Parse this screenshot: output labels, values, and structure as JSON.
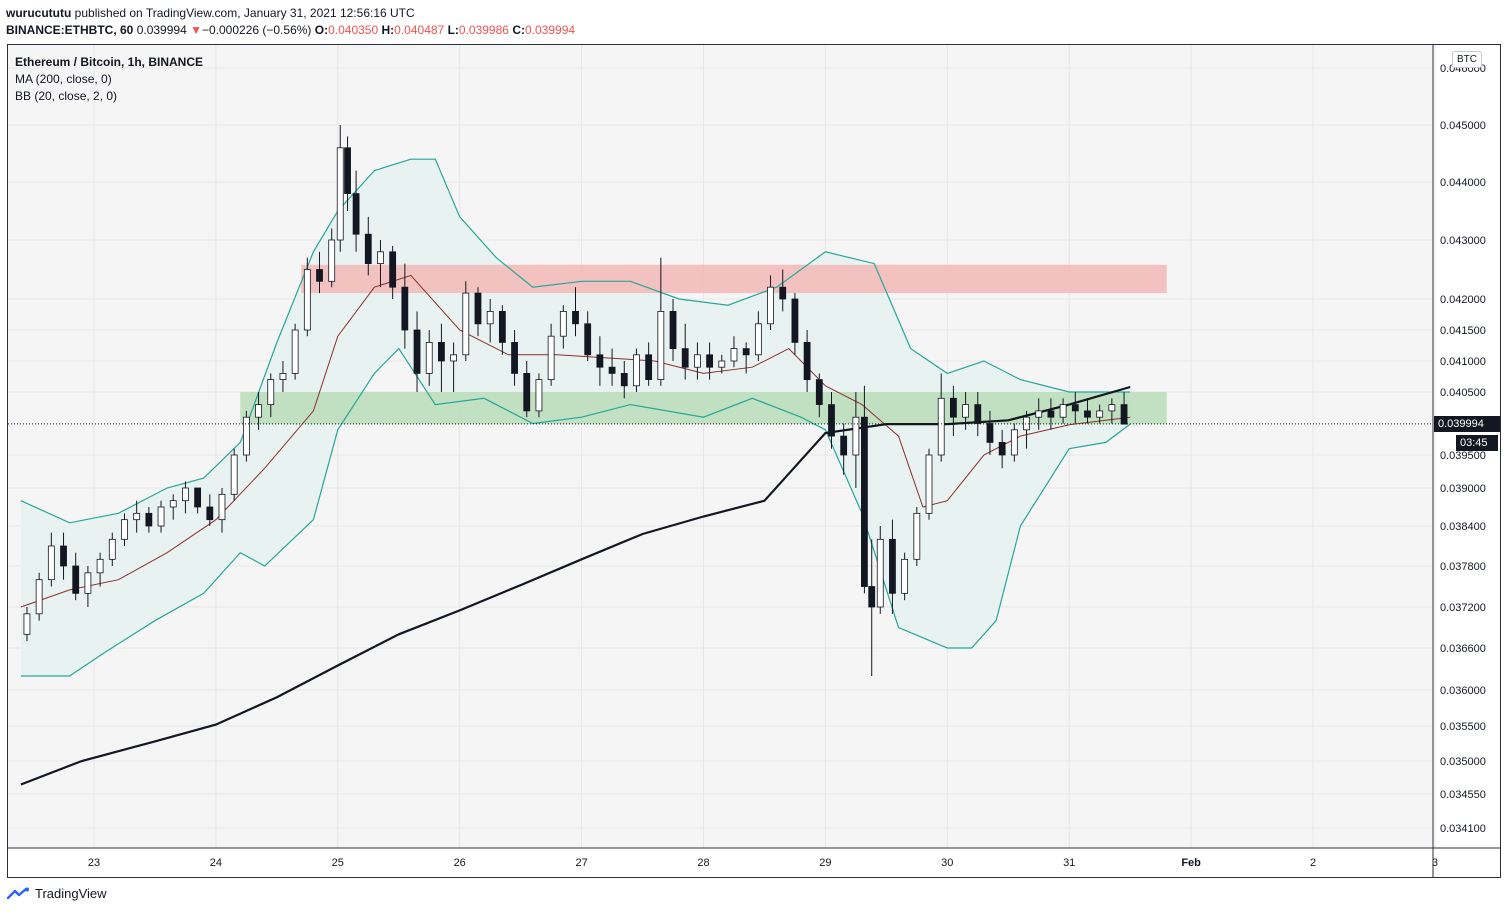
{
  "header": {
    "user": "wurucututu",
    "published_text": "published on TradingView.com, January 31, 2021 12:56:16 UTC",
    "symbol_line": "BINANCE:ETHBTC, 60",
    "last": "0.039994",
    "change_arrow": "▼",
    "change": "−0.000226 (−0.56%)",
    "o_label": "O:",
    "o_val": "0.040350",
    "h_label": "H:",
    "h_val": "0.040487",
    "l_label": "L:",
    "l_val": "0.039986",
    "c_label": "C:",
    "c_val": "0.039994"
  },
  "legend": {
    "title": "Ethereum / Bitcoin, 1h, BINANCE",
    "ma": "MA (200, close, 0)",
    "bb": "BB (20, close, 2, 0)"
  },
  "currency_button": "BTC",
  "price_tag": "0.039994",
  "countdown_tag": "03:45",
  "footer": {
    "brand": "TradingView"
  },
  "colors": {
    "up": "#ffffff",
    "down": "#131722",
    "bb_fill": "#e8f3f1",
    "bb_band": "#26a69a",
    "bb_basis": "#8d2f2a",
    "ma": "#131722",
    "resistance_zone": "#f2b9b6",
    "support_zone": "#b9dcb8",
    "price_tag_bg": "#131722"
  },
  "chart_data": {
    "type": "candlestick",
    "symbol": "ETHBTC",
    "timeframe": "1h",
    "x_ticks": [
      "23",
      "24",
      "25",
      "26",
      "27",
      "28",
      "29",
      "30",
      "31",
      "Feb",
      "2",
      "3"
    ],
    "y_ticks": [
      "0.034100",
      "0.034550",
      "0.035000",
      "0.035500",
      "0.036000",
      "0.036600",
      "0.037200",
      "0.037800",
      "0.038400",
      "0.039000",
      "0.039500",
      "0.040500",
      "0.041000",
      "0.041500",
      "0.042000",
      "0.043000",
      "0.044000",
      "0.045000",
      "0.046000"
    ],
    "ylim": [
      0.0338,
      0.0462
    ],
    "zones": [
      {
        "name": "resistance",
        "from": 0.0421,
        "to": 0.04258,
        "start_day": 24.7,
        "end_day": 31.8
      },
      {
        "name": "support",
        "from": 0.03999,
        "to": 0.0405,
        "start_day": 24.2,
        "end_day": 31.8
      }
    ],
    "ma200": [
      [
        22.4,
        0.03468
      ],
      [
        22.9,
        0.035
      ],
      [
        23.5,
        0.03528
      ],
      [
        24.0,
        0.03552
      ],
      [
        24.5,
        0.0359
      ],
      [
        25.0,
        0.03635
      ],
      [
        25.5,
        0.0368
      ],
      [
        26.0,
        0.03715
      ],
      [
        26.5,
        0.03752
      ],
      [
        27.0,
        0.0379
      ],
      [
        27.5,
        0.03828
      ],
      [
        28.0,
        0.03855
      ],
      [
        28.5,
        0.0388
      ],
      [
        29.0,
        0.03985
      ],
      [
        29.5,
        0.03999
      ],
      [
        30.0,
        0.03999
      ],
      [
        30.5,
        0.04005
      ],
      [
        31.0,
        0.0403
      ],
      [
        31.5,
        0.04058
      ]
    ],
    "bb_upper": [
      [
        22.4,
        0.0388
      ],
      [
        22.8,
        0.03845
      ],
      [
        23.2,
        0.0386
      ],
      [
        23.6,
        0.039
      ],
      [
        23.9,
        0.03915
      ],
      [
        24.2,
        0.0397
      ],
      [
        24.5,
        0.0413
      ],
      [
        24.8,
        0.0428
      ],
      [
        25.0,
        0.0435
      ],
      [
        25.3,
        0.0442
      ],
      [
        25.6,
        0.0444
      ],
      [
        25.8,
        0.0444
      ],
      [
        26.0,
        0.0434
      ],
      [
        26.3,
        0.0427
      ],
      [
        26.6,
        0.0422
      ],
      [
        27.0,
        0.0423
      ],
      [
        27.4,
        0.0423
      ],
      [
        27.8,
        0.042
      ],
      [
        28.2,
        0.0419
      ],
      [
        28.6,
        0.0422
      ],
      [
        29.0,
        0.0428
      ],
      [
        29.4,
        0.0426
      ],
      [
        29.7,
        0.0412
      ],
      [
        30.0,
        0.0408
      ],
      [
        30.3,
        0.041
      ],
      [
        30.6,
        0.0407
      ],
      [
        31.0,
        0.0405
      ],
      [
        31.5,
        0.0405
      ]
    ],
    "bb_basis": [
      [
        22.4,
        0.0372
      ],
      [
        22.8,
        0.03745
      ],
      [
        23.2,
        0.0376
      ],
      [
        23.6,
        0.038
      ],
      [
        24.0,
        0.0385
      ],
      [
        24.4,
        0.0393
      ],
      [
        24.8,
        0.0402
      ],
      [
        25.0,
        0.0414
      ],
      [
        25.3,
        0.0422
      ],
      [
        25.6,
        0.0424
      ],
      [
        26.0,
        0.0415
      ],
      [
        26.4,
        0.0411
      ],
      [
        26.8,
        0.0411
      ],
      [
        27.2,
        0.04105
      ],
      [
        27.6,
        0.041
      ],
      [
        28.0,
        0.0408
      ],
      [
        28.4,
        0.0409
      ],
      [
        28.7,
        0.0412
      ],
      [
        29.0,
        0.0406
      ],
      [
        29.3,
        0.0403
      ],
      [
        29.6,
        0.0398
      ],
      [
        29.8,
        0.0387
      ],
      [
        30.0,
        0.0388
      ],
      [
        30.3,
        0.0395
      ],
      [
        30.6,
        0.0398
      ],
      [
        31.0,
        0.03998
      ],
      [
        31.5,
        0.0401
      ]
    ],
    "bb_lower": [
      [
        22.4,
        0.0362
      ],
      [
        22.8,
        0.0362
      ],
      [
        23.1,
        0.03655
      ],
      [
        23.5,
        0.037
      ],
      [
        23.9,
        0.0374
      ],
      [
        24.2,
        0.038
      ],
      [
        24.4,
        0.0378
      ],
      [
        24.8,
        0.0385
      ],
      [
        25.0,
        0.0399
      ],
      [
        25.3,
        0.0408
      ],
      [
        25.5,
        0.0412
      ],
      [
        25.8,
        0.0403
      ],
      [
        26.2,
        0.0404
      ],
      [
        26.6,
        0.04
      ],
      [
        27.0,
        0.0401
      ],
      [
        27.4,
        0.0403
      ],
      [
        28.0,
        0.0401
      ],
      [
        28.4,
        0.0404
      ],
      [
        28.8,
        0.0401
      ],
      [
        29.0,
        0.0399
      ],
      [
        29.3,
        0.0386
      ],
      [
        29.6,
        0.0369
      ],
      [
        30.0,
        0.0366
      ],
      [
        30.2,
        0.0366
      ],
      [
        30.4,
        0.037
      ],
      [
        30.6,
        0.0384
      ],
      [
        31.0,
        0.0396
      ],
      [
        31.3,
        0.0397
      ],
      [
        31.5,
        0.03999
      ]
    ],
    "ohlc": [
      [
        22.45,
        0.0368,
        0.0372,
        0.0367,
        0.0371
      ],
      [
        22.55,
        0.0371,
        0.0377,
        0.037,
        0.0376
      ],
      [
        22.65,
        0.0376,
        0.0383,
        0.0375,
        0.0381
      ],
      [
        22.75,
        0.0381,
        0.0383,
        0.0376,
        0.0378
      ],
      [
        22.85,
        0.0378,
        0.038,
        0.0373,
        0.0374
      ],
      [
        22.95,
        0.0374,
        0.0378,
        0.0372,
        0.0377
      ],
      [
        23.05,
        0.0377,
        0.038,
        0.0375,
        0.0379
      ],
      [
        23.15,
        0.0379,
        0.0383,
        0.0378,
        0.0382
      ],
      [
        23.25,
        0.0382,
        0.0386,
        0.0381,
        0.0385
      ],
      [
        23.35,
        0.0385,
        0.0388,
        0.0383,
        0.0386
      ],
      [
        23.45,
        0.0386,
        0.0387,
        0.0383,
        0.0384
      ],
      [
        23.55,
        0.0384,
        0.0388,
        0.0383,
        0.0387
      ],
      [
        23.65,
        0.0387,
        0.0389,
        0.0385,
        0.0388
      ],
      [
        23.75,
        0.0388,
        0.0391,
        0.0386,
        0.039
      ],
      [
        23.85,
        0.039,
        0.039,
        0.0386,
        0.0387
      ],
      [
        23.95,
        0.0387,
        0.0389,
        0.0384,
        0.0385
      ],
      [
        24.05,
        0.0385,
        0.039,
        0.0383,
        0.0389
      ],
      [
        24.15,
        0.0389,
        0.0396,
        0.0388,
        0.0395
      ],
      [
        24.25,
        0.0395,
        0.0402,
        0.0394,
        0.0401
      ],
      [
        24.35,
        0.0401,
        0.0405,
        0.0399,
        0.0403
      ],
      [
        24.45,
        0.0403,
        0.0408,
        0.0401,
        0.0407
      ],
      [
        24.55,
        0.0407,
        0.041,
        0.0405,
        0.0408
      ],
      [
        24.65,
        0.0408,
        0.0416,
        0.0407,
        0.0415
      ],
      [
        24.75,
        0.0415,
        0.0427,
        0.0414,
        0.0425
      ],
      [
        24.85,
        0.0425,
        0.0428,
        0.0421,
        0.0423
      ],
      [
        24.95,
        0.0423,
        0.0432,
        0.0422,
        0.043
      ],
      [
        25.02,
        0.043,
        0.045,
        0.0428,
        0.0446
      ],
      [
        25.08,
        0.0446,
        0.0448,
        0.0435,
        0.0438
      ],
      [
        25.15,
        0.0438,
        0.0442,
        0.0428,
        0.0431
      ],
      [
        25.25,
        0.0431,
        0.0434,
        0.0424,
        0.0426
      ],
      [
        25.35,
        0.0426,
        0.043,
        0.0422,
        0.0428
      ],
      [
        25.45,
        0.0428,
        0.0429,
        0.042,
        0.0422
      ],
      [
        25.55,
        0.0422,
        0.0426,
        0.0412,
        0.0415
      ],
      [
        25.65,
        0.0415,
        0.0418,
        0.0405,
        0.0408
      ],
      [
        25.75,
        0.0408,
        0.0415,
        0.0406,
        0.0413
      ],
      [
        25.85,
        0.0413,
        0.0416,
        0.0405,
        0.041
      ],
      [
        25.95,
        0.041,
        0.0413,
        0.0405,
        0.0411
      ],
      [
        26.05,
        0.0411,
        0.0423,
        0.041,
        0.0421
      ],
      [
        26.15,
        0.0421,
        0.0422,
        0.0414,
        0.0416
      ],
      [
        26.25,
        0.0416,
        0.042,
        0.0413,
        0.0418
      ],
      [
        26.35,
        0.0418,
        0.0419,
        0.0411,
        0.0413
      ],
      [
        26.45,
        0.0413,
        0.0415,
        0.0406,
        0.0408
      ],
      [
        26.55,
        0.0408,
        0.041,
        0.0401,
        0.0402
      ],
      [
        26.65,
        0.0402,
        0.0408,
        0.0401,
        0.0407
      ],
      [
        26.75,
        0.0407,
        0.0416,
        0.0406,
        0.0414
      ],
      [
        26.85,
        0.0414,
        0.0419,
        0.0412,
        0.0418
      ],
      [
        26.95,
        0.0418,
        0.0422,
        0.0414,
        0.0416
      ],
      [
        27.05,
        0.0416,
        0.0418,
        0.041,
        0.0411
      ],
      [
        27.15,
        0.0411,
        0.0414,
        0.0406,
        0.0409
      ],
      [
        27.25,
        0.0409,
        0.0412,
        0.0406,
        0.0408
      ],
      [
        27.35,
        0.0408,
        0.041,
        0.0404,
        0.0406
      ],
      [
        27.45,
        0.0406,
        0.0412,
        0.0405,
        0.0411
      ],
      [
        27.55,
        0.0411,
        0.0413,
        0.0406,
        0.0407
      ],
      [
        27.65,
        0.0407,
        0.0427,
        0.0406,
        0.0418
      ],
      [
        27.75,
        0.0418,
        0.042,
        0.041,
        0.0412
      ],
      [
        27.85,
        0.0412,
        0.0416,
        0.0407,
        0.0409
      ],
      [
        27.95,
        0.0409,
        0.0413,
        0.0407,
        0.0411
      ],
      [
        28.05,
        0.0411,
        0.0413,
        0.0407,
        0.0409
      ],
      [
        28.15,
        0.0409,
        0.0411,
        0.0408,
        0.041
      ],
      [
        28.25,
        0.041,
        0.0414,
        0.0409,
        0.0412
      ],
      [
        28.35,
        0.0412,
        0.0413,
        0.0408,
        0.0411
      ],
      [
        28.45,
        0.0411,
        0.0418,
        0.041,
        0.0416
      ],
      [
        28.55,
        0.0416,
        0.0424,
        0.0415,
        0.0422
      ],
      [
        28.65,
        0.0422,
        0.0425,
        0.0418,
        0.042
      ],
      [
        28.75,
        0.042,
        0.0421,
        0.0411,
        0.0413
      ],
      [
        28.85,
        0.0413,
        0.0415,
        0.0405,
        0.0407
      ],
      [
        28.95,
        0.0407,
        0.0408,
        0.0401,
        0.0403
      ],
      [
        29.05,
        0.0403,
        0.0405,
        0.0396,
        0.0398
      ],
      [
        29.15,
        0.0398,
        0.04,
        0.0392,
        0.0395
      ],
      [
        29.25,
        0.0395,
        0.0405,
        0.039,
        0.0401
      ],
      [
        29.32,
        0.0401,
        0.0406,
        0.0374,
        0.0375
      ],
      [
        29.38,
        0.0375,
        0.0382,
        0.0362,
        0.0372
      ],
      [
        29.45,
        0.0372,
        0.0384,
        0.0371,
        0.0382
      ],
      [
        29.55,
        0.0382,
        0.0385,
        0.0371,
        0.0374
      ],
      [
        29.65,
        0.0374,
        0.038,
        0.0373,
        0.0379
      ],
      [
        29.75,
        0.0379,
        0.0387,
        0.0378,
        0.0386
      ],
      [
        29.85,
        0.0386,
        0.0396,
        0.0385,
        0.0395
      ],
      [
        29.95,
        0.0395,
        0.0408,
        0.0394,
        0.0404
      ],
      [
        30.05,
        0.0404,
        0.0406,
        0.0398,
        0.0401
      ],
      [
        30.15,
        0.0401,
        0.0405,
        0.0399,
        0.0403
      ],
      [
        30.25,
        0.0403,
        0.0405,
        0.0398,
        0.04
      ],
      [
        30.35,
        0.04,
        0.0402,
        0.0395,
        0.0397
      ],
      [
        30.45,
        0.0397,
        0.0399,
        0.0393,
        0.0395
      ],
      [
        30.55,
        0.0395,
        0.04,
        0.0394,
        0.0399
      ],
      [
        30.65,
        0.0399,
        0.0402,
        0.0396,
        0.0401
      ],
      [
        30.75,
        0.0401,
        0.0404,
        0.0399,
        0.0402
      ],
      [
        30.85,
        0.0402,
        0.0404,
        0.0399,
        0.0401
      ],
      [
        30.95,
        0.0401,
        0.0404,
        0.04,
        0.0403
      ],
      [
        31.05,
        0.0403,
        0.0405,
        0.04,
        0.0402
      ],
      [
        31.15,
        0.0402,
        0.0404,
        0.04,
        0.0401
      ],
      [
        31.25,
        0.0401,
        0.0403,
        0.04,
        0.0402
      ],
      [
        31.35,
        0.0402,
        0.0404,
        0.04,
        0.0403
      ],
      [
        31.45,
        0.0403,
        0.0405,
        0.04,
        0.03999
      ]
    ]
  }
}
